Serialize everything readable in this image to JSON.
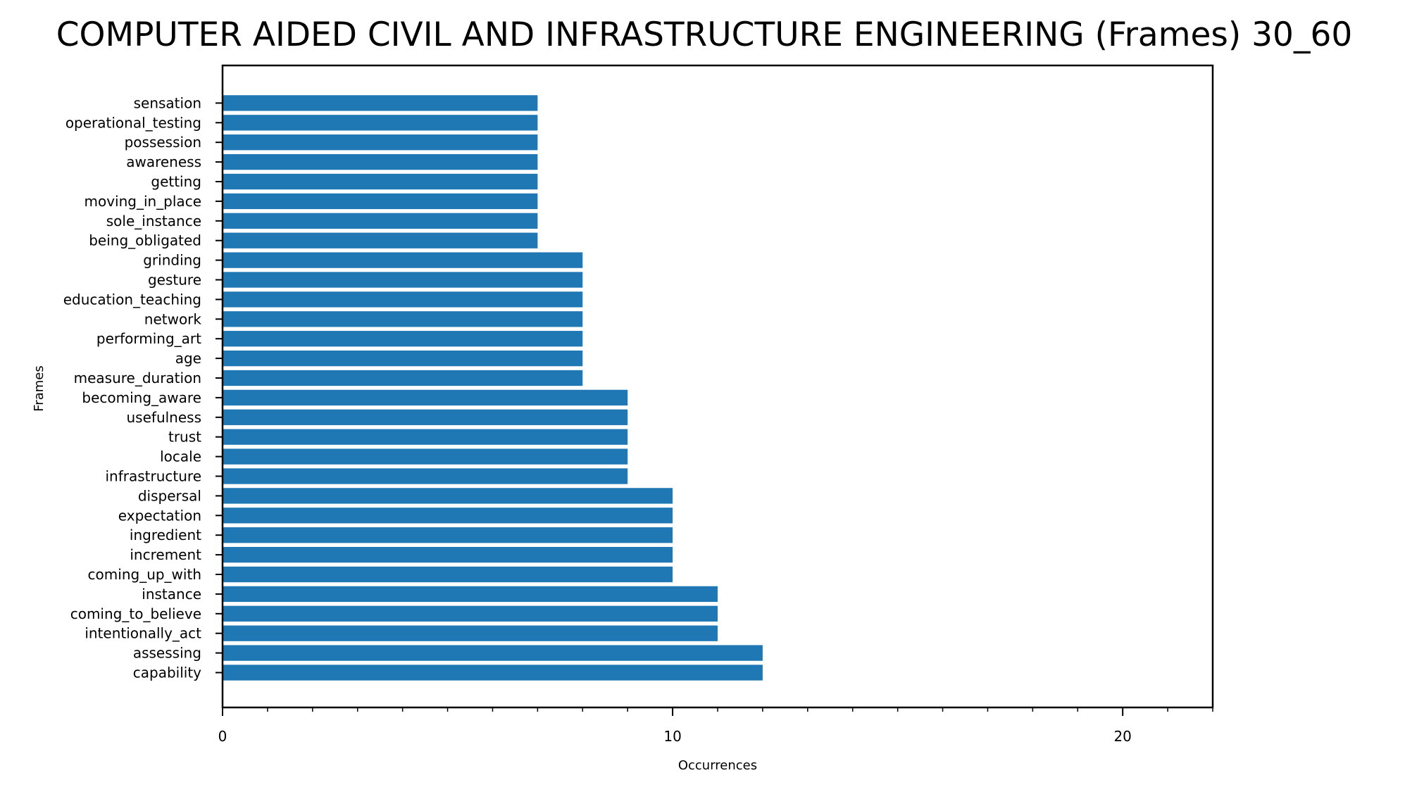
{
  "chart_data": {
    "type": "bar",
    "orientation": "horizontal",
    "title": "COMPUTER AIDED CIVIL AND INFRASTRUCTURE ENGINEERING (Frames) 30_60",
    "xlabel": "Occurrences",
    "ylabel": "Frames",
    "xlim": [
      0,
      22
    ],
    "x_major_ticks": [
      0,
      10,
      20
    ],
    "x_minor_step": 1,
    "grid": false,
    "bar_color": "#1f77b4",
    "categories": [
      "capability",
      "assessing",
      "intentionally_act",
      "coming_to_believe",
      "instance",
      "coming_up_with",
      "increment",
      "ingredient",
      "expectation",
      "dispersal",
      "infrastructure",
      "locale",
      "trust",
      "usefulness",
      "becoming_aware",
      "measure_duration",
      "age",
      "performing_art",
      "network",
      "education_teaching",
      "gesture",
      "grinding",
      "being_obligated",
      "sole_instance",
      "moving_in_place",
      "getting",
      "awareness",
      "possession",
      "operational_testing",
      "sensation"
    ],
    "values": [
      12,
      12,
      11,
      11,
      11,
      10,
      10,
      10,
      10,
      10,
      9,
      9,
      9,
      9,
      9,
      8,
      8,
      8,
      8,
      8,
      8,
      8,
      7,
      7,
      7,
      7,
      7,
      7,
      7,
      7
    ]
  }
}
